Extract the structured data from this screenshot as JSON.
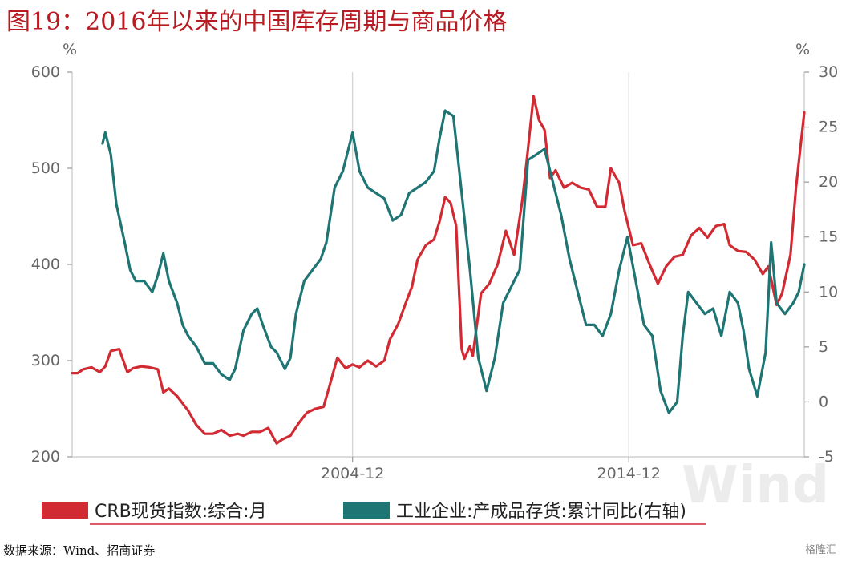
{
  "header": {
    "title": "图19：2016年以来的中国库存周期与商品价格"
  },
  "footer": {
    "source": "数据来源：Wind、招商证券",
    "badge": "格隆汇"
  },
  "watermark": "Wind",
  "chart_data": {
    "type": "line",
    "left_unit": "%",
    "right_unit": "%",
    "x_labels": [
      "2004-12",
      "2014-12"
    ],
    "x_label_positions": [
      2004.95,
      2014.95
    ],
    "xlim": [
      1994.8,
      2021.3
    ],
    "ylim_left": [
      200,
      600
    ],
    "ylim_right": [
      -5,
      30
    ],
    "left_ticks": [
      200,
      300,
      400,
      500,
      600
    ],
    "right_ticks": [
      -5,
      0,
      5,
      10,
      15,
      20,
      25,
      30
    ],
    "grid_x": true,
    "legend_position": "bottom",
    "colors": {
      "crb": "#d12a33",
      "inventory": "#1f7474",
      "grid": "#d0d0d0"
    },
    "series": [
      {
        "name": "CRB现货指数:综合:月",
        "axis": "left",
        "color": "#d12a33",
        "points": [
          [
            1994.8,
            287
          ],
          [
            1995.0,
            287
          ],
          [
            1995.2,
            291
          ],
          [
            1995.5,
            293
          ],
          [
            1995.8,
            288
          ],
          [
            1996.0,
            294
          ],
          [
            1996.2,
            310
          ],
          [
            1996.5,
            312
          ],
          [
            1996.8,
            288
          ],
          [
            1997.0,
            292
          ],
          [
            1997.3,
            294
          ],
          [
            1997.6,
            293
          ],
          [
            1997.9,
            291
          ],
          [
            1998.1,
            267
          ],
          [
            1998.3,
            271
          ],
          [
            1998.6,
            263
          ],
          [
            1999.0,
            248
          ],
          [
            1999.3,
            233
          ],
          [
            1999.6,
            224
          ],
          [
            1999.9,
            224
          ],
          [
            2000.2,
            228
          ],
          [
            2000.5,
            222
          ],
          [
            2000.8,
            224
          ],
          [
            2001.0,
            222
          ],
          [
            2001.3,
            226
          ],
          [
            2001.6,
            226
          ],
          [
            2001.9,
            230
          ],
          [
            2002.2,
            214
          ],
          [
            2002.4,
            218
          ],
          [
            2002.7,
            222
          ],
          [
            2003.0,
            235
          ],
          [
            2003.3,
            246
          ],
          [
            2003.6,
            250
          ],
          [
            2003.9,
            252
          ],
          [
            2004.1,
            272
          ],
          [
            2004.4,
            303
          ],
          [
            2004.7,
            292
          ],
          [
            2004.95,
            296
          ],
          [
            2005.2,
            293
          ],
          [
            2005.5,
            300
          ],
          [
            2005.8,
            294
          ],
          [
            2006.1,
            300
          ],
          [
            2006.3,
            322
          ],
          [
            2006.6,
            338
          ],
          [
            2006.9,
            362
          ],
          [
            2007.1,
            377
          ],
          [
            2007.3,
            405
          ],
          [
            2007.6,
            420
          ],
          [
            2007.9,
            426
          ],
          [
            2008.1,
            445
          ],
          [
            2008.3,
            470
          ],
          [
            2008.5,
            464
          ],
          [
            2008.7,
            440
          ],
          [
            2008.9,
            312
          ],
          [
            2009.0,
            302
          ],
          [
            2009.2,
            315
          ],
          [
            2009.3,
            305
          ],
          [
            2009.6,
            370
          ],
          [
            2009.9,
            380
          ],
          [
            2010.2,
            400
          ],
          [
            2010.5,
            435
          ],
          [
            2010.8,
            410
          ],
          [
            2011.1,
            468
          ],
          [
            2011.3,
            520
          ],
          [
            2011.5,
            575
          ],
          [
            2011.7,
            550
          ],
          [
            2011.9,
            540
          ],
          [
            2012.1,
            490
          ],
          [
            2012.3,
            498
          ],
          [
            2012.6,
            480
          ],
          [
            2012.9,
            485
          ],
          [
            2013.2,
            480
          ],
          [
            2013.5,
            478
          ],
          [
            2013.8,
            460
          ],
          [
            2014.1,
            460
          ],
          [
            2014.3,
            500
          ],
          [
            2014.6,
            485
          ],
          [
            2014.8,
            455
          ],
          [
            2015.1,
            420
          ],
          [
            2015.4,
            422
          ],
          [
            2015.7,
            400
          ],
          [
            2016.0,
            380
          ],
          [
            2016.3,
            398
          ],
          [
            2016.6,
            408
          ],
          [
            2016.9,
            410
          ],
          [
            2017.2,
            430
          ],
          [
            2017.5,
            438
          ],
          [
            2017.8,
            428
          ],
          [
            2018.1,
            440
          ],
          [
            2018.4,
            442
          ],
          [
            2018.6,
            420
          ],
          [
            2018.9,
            414
          ],
          [
            2019.2,
            413
          ],
          [
            2019.5,
            405
          ],
          [
            2019.8,
            390
          ],
          [
            2020.0,
            398
          ],
          [
            2020.3,
            358
          ],
          [
            2020.5,
            370
          ],
          [
            2020.8,
            410
          ],
          [
            2021.0,
            480
          ],
          [
            2021.3,
            558
          ]
        ]
      },
      {
        "name": "工业企业:产成品存货:累计同比(右轴)",
        "axis": "right",
        "color": "#1f7474",
        "points": [
          [
            1995.9,
            23.5
          ],
          [
            1996.0,
            24.5
          ],
          [
            1996.2,
            22.5
          ],
          [
            1996.4,
            18
          ],
          [
            1996.7,
            14.5
          ],
          [
            1996.9,
            12
          ],
          [
            1997.1,
            11
          ],
          [
            1997.4,
            11
          ],
          [
            1997.7,
            10
          ],
          [
            1997.9,
            11.5
          ],
          [
            1998.1,
            13.5
          ],
          [
            1998.3,
            11
          ],
          [
            1998.6,
            9
          ],
          [
            1998.8,
            7
          ],
          [
            1999.0,
            6
          ],
          [
            1999.3,
            5
          ],
          [
            1999.6,
            3.5
          ],
          [
            1999.9,
            3.5
          ],
          [
            2000.2,
            2.5
          ],
          [
            2000.5,
            2
          ],
          [
            2000.7,
            3
          ],
          [
            2001.0,
            6.5
          ],
          [
            2001.3,
            8
          ],
          [
            2001.5,
            8.5
          ],
          [
            2001.7,
            7
          ],
          [
            2002.0,
            5
          ],
          [
            2002.2,
            4.5
          ],
          [
            2002.5,
            3
          ],
          [
            2002.7,
            4
          ],
          [
            2002.9,
            8
          ],
          [
            2003.2,
            11
          ],
          [
            2003.5,
            12
          ],
          [
            2003.8,
            13
          ],
          [
            2004.0,
            14.5
          ],
          [
            2004.3,
            19.5
          ],
          [
            2004.6,
            21
          ],
          [
            2004.95,
            24.5
          ],
          [
            2005.2,
            21
          ],
          [
            2005.5,
            19.5
          ],
          [
            2005.8,
            19
          ],
          [
            2006.1,
            18.5
          ],
          [
            2006.4,
            16.5
          ],
          [
            2006.7,
            17
          ],
          [
            2007.0,
            19
          ],
          [
            2007.3,
            19.5
          ],
          [
            2007.6,
            20
          ],
          [
            2007.9,
            21
          ],
          [
            2008.1,
            24
          ],
          [
            2008.3,
            26.5
          ],
          [
            2008.6,
            26
          ],
          [
            2008.9,
            19
          ],
          [
            2009.2,
            12
          ],
          [
            2009.5,
            4
          ],
          [
            2009.8,
            1
          ],
          [
            2010.1,
            4
          ],
          [
            2010.4,
            9
          ],
          [
            2010.7,
            10.5
          ],
          [
            2011.0,
            12
          ],
          [
            2011.3,
            22
          ],
          [
            2011.6,
            22.5
          ],
          [
            2011.9,
            23
          ],
          [
            2012.2,
            20
          ],
          [
            2012.5,
            17
          ],
          [
            2012.8,
            13
          ],
          [
            2013.1,
            10
          ],
          [
            2013.4,
            7
          ],
          [
            2013.7,
            7
          ],
          [
            2014.0,
            6
          ],
          [
            2014.3,
            8
          ],
          [
            2014.6,
            12
          ],
          [
            2014.9,
            15
          ],
          [
            2015.2,
            11
          ],
          [
            2015.5,
            7
          ],
          [
            2015.8,
            6
          ],
          [
            2016.1,
            1
          ],
          [
            2016.4,
            -1
          ],
          [
            2016.7,
            0
          ],
          [
            2016.9,
            6
          ],
          [
            2017.1,
            10
          ],
          [
            2017.4,
            9
          ],
          [
            2017.7,
            8
          ],
          [
            2018.0,
            8.5
          ],
          [
            2018.3,
            6
          ],
          [
            2018.6,
            10
          ],
          [
            2018.9,
            9
          ],
          [
            2019.1,
            6.5
          ],
          [
            2019.3,
            3
          ],
          [
            2019.6,
            0.5
          ],
          [
            2019.9,
            4.5
          ],
          [
            2020.1,
            14.5
          ],
          [
            2020.3,
            9
          ],
          [
            2020.6,
            8
          ],
          [
            2020.9,
            9
          ],
          [
            2021.1,
            10
          ],
          [
            2021.3,
            12.5
          ]
        ]
      }
    ]
  }
}
